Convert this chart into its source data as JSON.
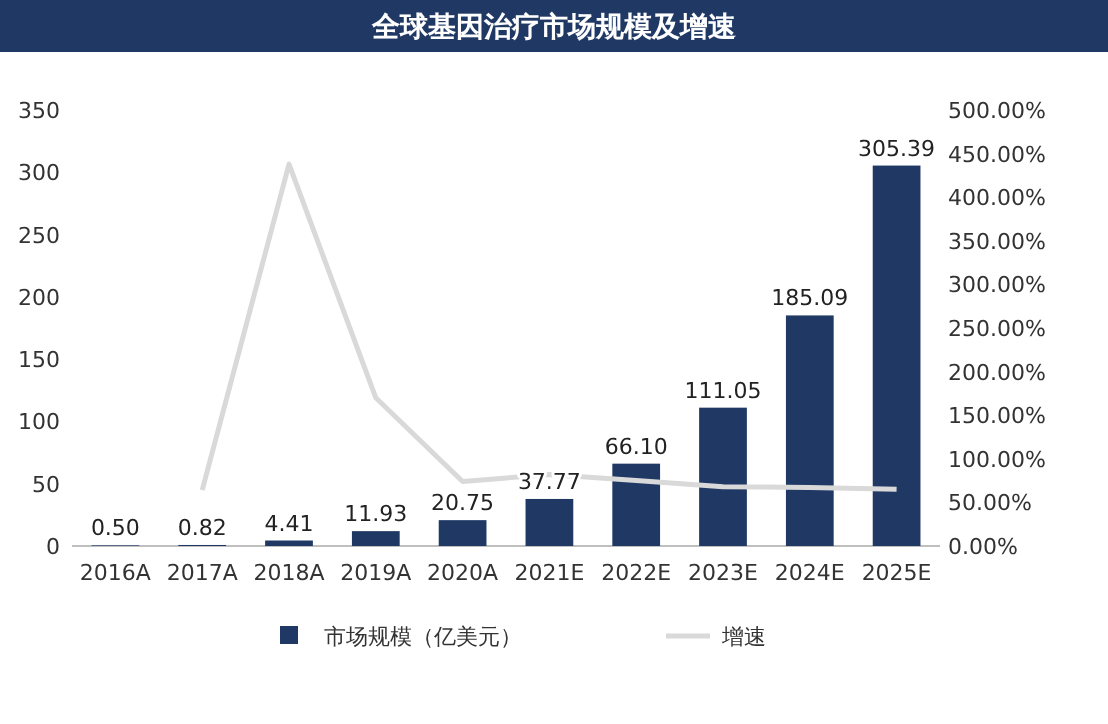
{
  "chart_data": {
    "type": "bar",
    "title": "全球基因治疗市场规模及增速",
    "categories": [
      "2016A",
      "2017A",
      "2018A",
      "2019A",
      "2020A",
      "2021E",
      "2022E",
      "2023E",
      "2024E",
      "2025E"
    ],
    "series": [
      {
        "name": "市场规模（亿美元）",
        "color": "#1f3864",
        "values": [
          0.5,
          0.82,
          4.41,
          11.93,
          20.75,
          37.77,
          66.1,
          111.05,
          185.09,
          305.39
        ],
        "value_labels": [
          "0.50",
          "0.82",
          "4.41",
          "11.93",
          "20.75",
          "37.77",
          "66.10",
          "111.05",
          "185.09",
          "305.39"
        ]
      },
      {
        "name": "增速",
        "type": "line",
        "axis": "y2",
        "color": "#d9d9d9",
        "values": [
          null,
          64,
          438,
          170,
          74,
          82,
          75,
          68,
          67,
          65
        ]
      }
    ],
    "ylim": [
      0,
      350
    ],
    "yticks": [
      0,
      50,
      100,
      150,
      200,
      250,
      300,
      350
    ],
    "y2lim": [
      0,
      500
    ],
    "y2ticks": [
      {
        "value": 0,
        "label": "0.00%"
      },
      {
        "value": 50,
        "label": "50.00%"
      },
      {
        "value": 100,
        "label": "100.00%"
      },
      {
        "value": 150,
        "label": "150.00%"
      },
      {
        "value": 200,
        "label": "200.00%"
      },
      {
        "value": 250,
        "label": "250.00%"
      },
      {
        "value": 300,
        "label": "300.00%"
      },
      {
        "value": 350,
        "label": "350.00%"
      },
      {
        "value": 400,
        "label": "400.00%"
      },
      {
        "value": 450,
        "label": "450.00%"
      },
      {
        "value": 500,
        "label": "500.00%"
      }
    ],
    "legend": "bottom"
  }
}
